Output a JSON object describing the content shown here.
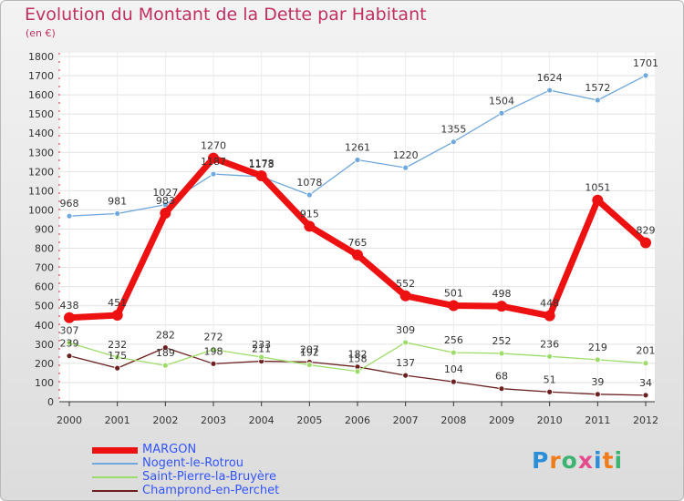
{
  "title": "Evolution du Montant de la Dette par Habitant",
  "subtitle": "(en €)",
  "logo": {
    "text": "Proxiti",
    "letters": [
      "P",
      "r",
      "o",
      "x",
      "i",
      "t",
      "i"
    ],
    "colors": [
      "#2a8fd8",
      "#f07c1a",
      "#3cb371",
      "#e64b8c",
      "#2a8fd8",
      "#f07c1a",
      "#3cb371"
    ]
  },
  "chart_data": {
    "type": "line",
    "x": [
      "2000",
      "2001",
      "2002",
      "2003",
      "2004",
      "2005",
      "2006",
      "2007",
      "2008",
      "2009",
      "2010",
      "2011",
      "2012"
    ],
    "ylim": [
      0,
      1800
    ],
    "yticks": [
      0,
      100,
      200,
      300,
      400,
      500,
      600,
      700,
      800,
      900,
      1000,
      1100,
      1200,
      1300,
      1400,
      1500,
      1600,
      1700,
      1800
    ],
    "grid": true,
    "legend_position": "bottom-left",
    "series": [
      {
        "name": "MARGON",
        "color": "#ee1111",
        "values": [
          438,
          451,
          983,
          1270,
          1178,
          915,
          765,
          552,
          501,
          498,
          448,
          1051,
          829
        ]
      },
      {
        "name": "Nogent-le-Rotrou",
        "color": "#6fa8dc",
        "values": [
          968,
          981,
          1027,
          1187,
          1173,
          1078,
          1261,
          1220,
          1355,
          1504,
          1624,
          1572,
          1701
        ]
      },
      {
        "name": "Saint-Pierre-la-Bruyère",
        "color": "#9edc6a",
        "values": [
          307,
          232,
          189,
          272,
          233,
          192,
          158,
          309,
          256,
          252,
          236,
          219,
          201
        ]
      },
      {
        "name": "Champrond-en-Perchet",
        "color": "#6b1f1f",
        "values": [
          239,
          175,
          282,
          198,
          211,
          207,
          182,
          137,
          104,
          68,
          51,
          39,
          34
        ]
      }
    ]
  }
}
